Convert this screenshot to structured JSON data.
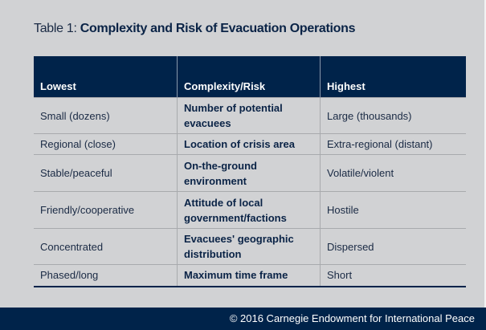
{
  "title": {
    "prefix": "Table 1: ",
    "main": "Complexity and Risk of Evacuation Operations"
  },
  "table": {
    "headers": [
      "Lowest",
      "Complexity/Risk",
      "Highest"
    ],
    "rows": [
      [
        "Small (dozens)",
        "Number of potential evacuees",
        "Large (thousands)"
      ],
      [
        "Regional (close)",
        "Location of crisis area",
        "Extra-regional (distant)"
      ],
      [
        "Stable/peaceful",
        "On-the-ground environment",
        "Volatile/violent"
      ],
      [
        "Friendly/cooperative",
        "Attitude of local government/factions",
        "Hostile"
      ],
      [
        "Concentrated",
        "Evacuees' geographic distribution",
        "Dispersed"
      ],
      [
        "Phased/long",
        "Maximum time frame",
        "Short"
      ]
    ]
  },
  "footer": "© 2016 Carnegie Endowment for International Peace"
}
